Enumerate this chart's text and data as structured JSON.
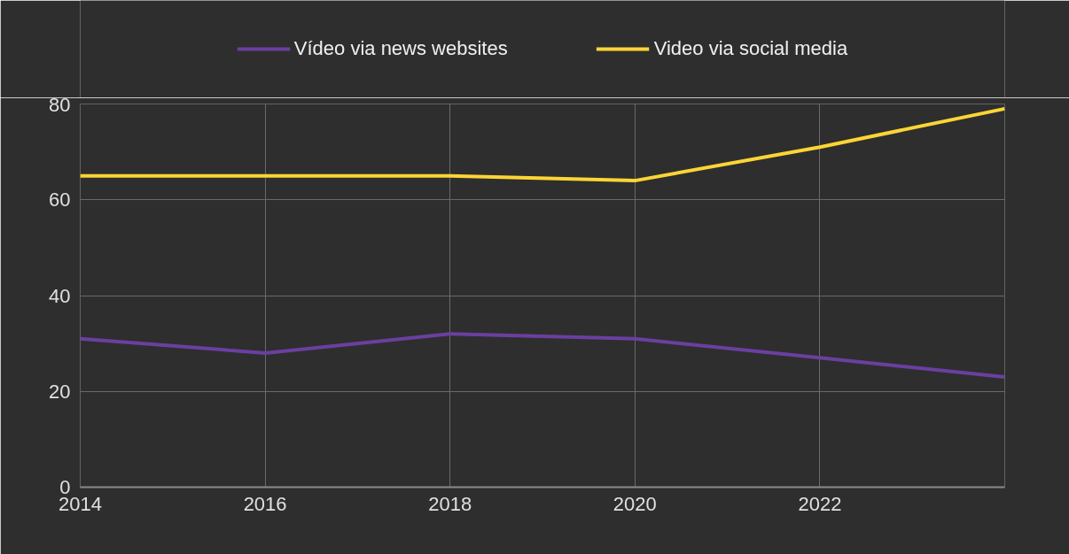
{
  "chart_data": {
    "type": "line",
    "x": [
      2014,
      2016,
      2018,
      2020,
      2022,
      2024
    ],
    "series": [
      {
        "name": "Vídeo via news websites",
        "color": "#6b3fa0",
        "values": [
          31,
          28,
          32,
          31,
          27,
          23
        ]
      },
      {
        "name": "Video via social media",
        "color": "#fcd535",
        "values": [
          65,
          65,
          65,
          64,
          71,
          79
        ]
      }
    ],
    "xlim": [
      2014,
      2024
    ],
    "ylim": [
      0,
      80
    ],
    "xticks": [
      2014,
      2016,
      2018,
      2020,
      2022
    ],
    "yticks": [
      0,
      20,
      40,
      60,
      80
    ],
    "grid": true,
    "legend": "top",
    "marker": "none",
    "line_style": "solid"
  }
}
